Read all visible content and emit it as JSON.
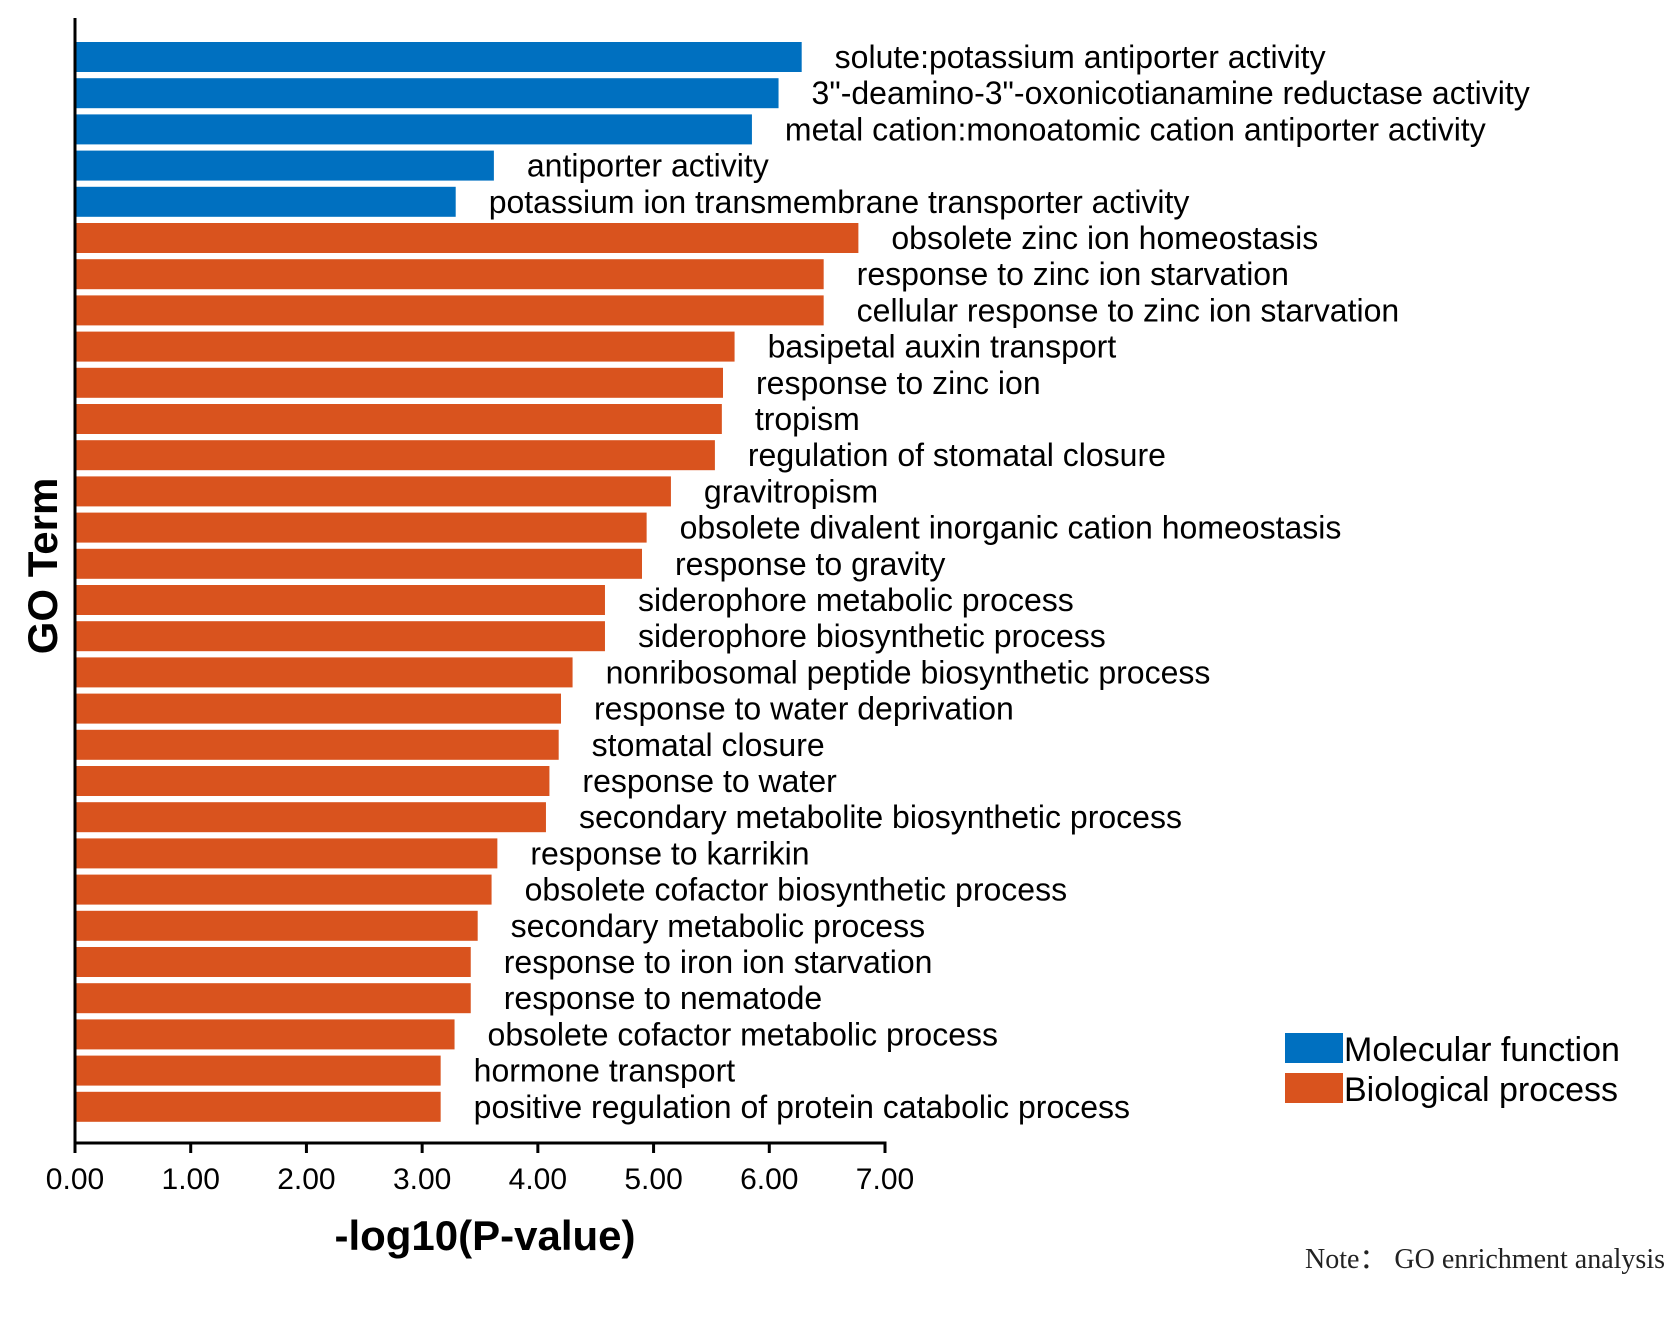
{
  "chart_data": {
    "type": "bar",
    "orientation": "horizontal",
    "xlabel": "-log10(P-value)",
    "ylabel": "GO Term",
    "xlim": [
      0,
      7
    ],
    "xticks": [
      "0.00",
      "1.00",
      "2.00",
      "3.00",
      "4.00",
      "5.00",
      "6.00",
      "7.00"
    ],
    "grid": false,
    "legend_position": "bottom-right",
    "legend": [
      {
        "name": "Molecular function",
        "color": "#0070c0"
      },
      {
        "name": "Biological process",
        "color": "#d9531e"
      }
    ],
    "categories": [
      "solute:potassium antiporter activity",
      "3\"-deamino-3\"-oxonicotianamine reductase activity",
      "metal cation:monoatomic cation antiporter activity",
      "antiporter activity",
      "potassium ion transmembrane transporter activity",
      "obsolete zinc ion homeostasis",
      "response to zinc ion starvation",
      "cellular response to zinc ion starvation",
      "basipetal auxin transport",
      "response to zinc ion",
      "tropism",
      "regulation of stomatal closure",
      "gravitropism",
      "obsolete divalent inorganic cation homeostasis",
      "response to gravity",
      "siderophore metabolic process",
      "siderophore biosynthetic process",
      "nonribosomal peptide biosynthetic process",
      "response to water deprivation",
      "stomatal closure",
      "response to water",
      "secondary metabolite biosynthetic process",
      "response to karrikin",
      "obsolete cofactor biosynthetic process",
      "secondary metabolic process",
      "response to iron ion starvation",
      "response to nematode",
      "obsolete cofactor metabolic process",
      "hormone transport",
      "positive regulation of protein catabolic process"
    ],
    "values": [
      6.28,
      6.08,
      5.85,
      3.62,
      3.29,
      6.77,
      6.47,
      6.47,
      5.7,
      5.6,
      5.59,
      5.53,
      5.15,
      4.94,
      4.9,
      4.58,
      4.58,
      4.3,
      4.2,
      4.18,
      4.1,
      4.07,
      3.65,
      3.6,
      3.48,
      3.42,
      3.42,
      3.28,
      3.16,
      3.16
    ],
    "groups": [
      "Molecular function",
      "Molecular function",
      "Molecular function",
      "Molecular function",
      "Molecular function",
      "Biological process",
      "Biological process",
      "Biological process",
      "Biological process",
      "Biological process",
      "Biological process",
      "Biological process",
      "Biological process",
      "Biological process",
      "Biological process",
      "Biological process",
      "Biological process",
      "Biological process",
      "Biological process",
      "Biological process",
      "Biological process",
      "Biological process",
      "Biological process",
      "Biological process",
      "Biological process",
      "Biological process",
      "Biological process",
      "Biological process",
      "Biological process",
      "Biological process"
    ]
  },
  "note": "Note： GO enrichment analysis"
}
